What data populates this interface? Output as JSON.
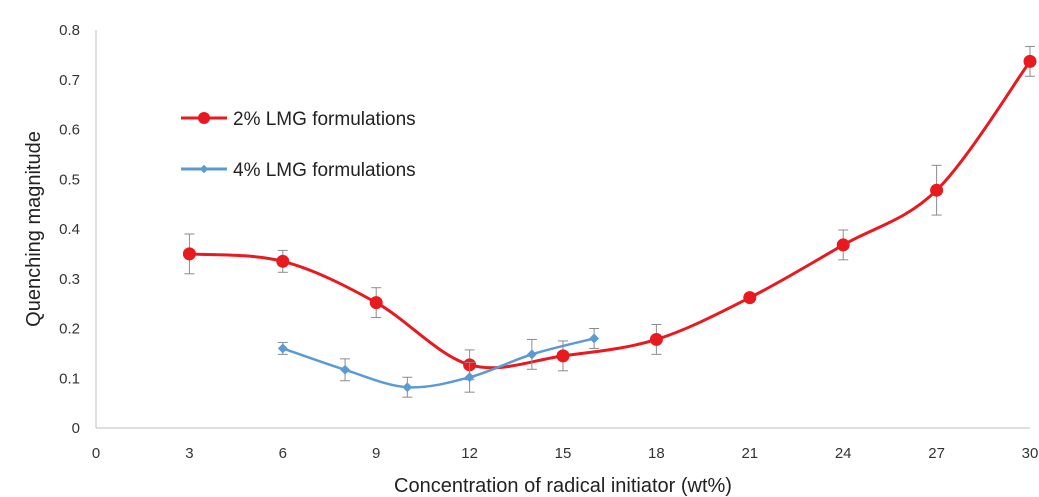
{
  "chart_data": {
    "type": "line",
    "xlabel": "Concentration of radical initiator (wt%)",
    "ylabel": "Quenching magnitude",
    "xlim": [
      0,
      30
    ],
    "ylim": [
      0,
      0.8
    ],
    "x_ticks": [
      "0",
      "3",
      "6",
      "9",
      "12",
      "15",
      "18",
      "21",
      "24",
      "27",
      "30"
    ],
    "y_ticks": [
      "0",
      "0.1",
      "0.2",
      "0.3",
      "0.4",
      "0.5",
      "0.6",
      "0.7",
      "0.8"
    ],
    "grid": false,
    "legend_position": "top-left",
    "series": [
      {
        "name": "2% LMG formulations",
        "color": "#e8191f",
        "marker": "circle",
        "x": [
          3,
          6,
          9,
          12,
          15,
          18,
          21,
          24,
          27,
          30
        ],
        "y": [
          0.35,
          0.335,
          0.252,
          0.127,
          0.145,
          0.178,
          0.262,
          0.368,
          0.478,
          0.737
        ],
        "error": [
          0.04,
          0.022,
          0.03,
          0.03,
          0.03,
          0.03,
          0.008,
          0.03,
          0.05,
          0.03
        ]
      },
      {
        "name": "4% LMG formulations",
        "color": "#5b9bd5",
        "marker": "diamond",
        "x": [
          6,
          8,
          10,
          12,
          14,
          16
        ],
        "y": [
          0.16,
          0.117,
          0.082,
          0.102,
          0.148,
          0.18
        ],
        "error": [
          0.012,
          0.022,
          0.02,
          0.03,
          0.03,
          0.02
        ]
      }
    ]
  }
}
